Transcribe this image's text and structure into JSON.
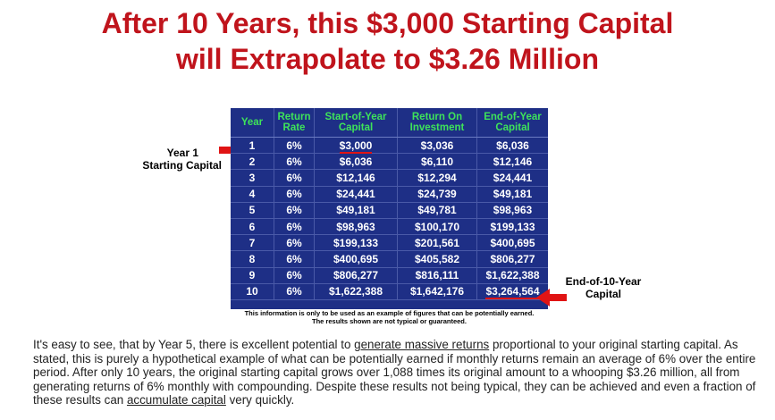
{
  "headline": {
    "line1": "After 10 Years, this $3,000 Starting Capital",
    "line2": "will Extrapolate to $3.26 Million"
  },
  "table": {
    "headers": {
      "year": "Year",
      "rate": [
        "Return",
        "Rate"
      ],
      "start": [
        "Start-of-Year",
        "Capital"
      ],
      "roi": [
        "Return On",
        "Investment"
      ],
      "end": [
        "End-of-Year",
        "Capital"
      ]
    },
    "rows": [
      {
        "year": "1",
        "rate": "6%",
        "start": "$3,000",
        "roi": "$3,036",
        "end": "$6,036"
      },
      {
        "year": "2",
        "rate": "6%",
        "start": "$6,036",
        "roi": "$6,110",
        "end": "$12,146"
      },
      {
        "year": "3",
        "rate": "6%",
        "start": "$12,146",
        "roi": "$12,294",
        "end": "$24,441"
      },
      {
        "year": "4",
        "rate": "6%",
        "start": "$24,441",
        "roi": "$24,739",
        "end": "$49,181"
      },
      {
        "year": "5",
        "rate": "6%",
        "start": "$49,181",
        "roi": "$49,781",
        "end": "$98,963"
      },
      {
        "year": "6",
        "rate": "6%",
        "start": "$98,963",
        "roi": "$100,170",
        "end": "$199,133"
      },
      {
        "year": "7",
        "rate": "6%",
        "start": "$199,133",
        "roi": "$201,561",
        "end": "$400,695"
      },
      {
        "year": "8",
        "rate": "6%",
        "start": "$400,695",
        "roi": "$405,582",
        "end": "$806,277"
      },
      {
        "year": "9",
        "rate": "6%",
        "start": "$806,277",
        "roi": "$816,111",
        "end": "$1,622,388"
      },
      {
        "year": "10",
        "rate": "6%",
        "start": "$1,622,388",
        "roi": "$1,642,176",
        "end": "$3,264,564"
      }
    ],
    "disclaimer_line1": "This information is only to be used as an example of figures that can be potentially earned.",
    "disclaimer_line2": "The results shown are not typical or guaranteed."
  },
  "labels": {
    "year1_line1": "Year 1",
    "year1_line2": "Starting Capital",
    "end_line1": "End-of-10-Year",
    "end_line2": "Capital"
  },
  "paragraph": {
    "p1": "It's easy to see, that by Year 5, there is excellent potential to ",
    "link1": "generate massive returns",
    "p2": " proportional to your original starting capital. As stated, this is purely a hypothetical example of what can be potentially earned if monthly returns remain an average of 6% over the entire period. After only 10 years, the original starting capital grows over 1,088 times its original amount to a whooping $3.26 million, all from generating returns of 6% monthly with compounding. Despite these results not being typical, they can be achieved and even a fraction of these results can ",
    "link2": "accumulate capital",
    "p3": " very quickly."
  },
  "colors": {
    "headline": "#c0141c",
    "table_bg": "#1e2f86",
    "header_text": "#3ee35a",
    "arrow": "#e01414"
  }
}
